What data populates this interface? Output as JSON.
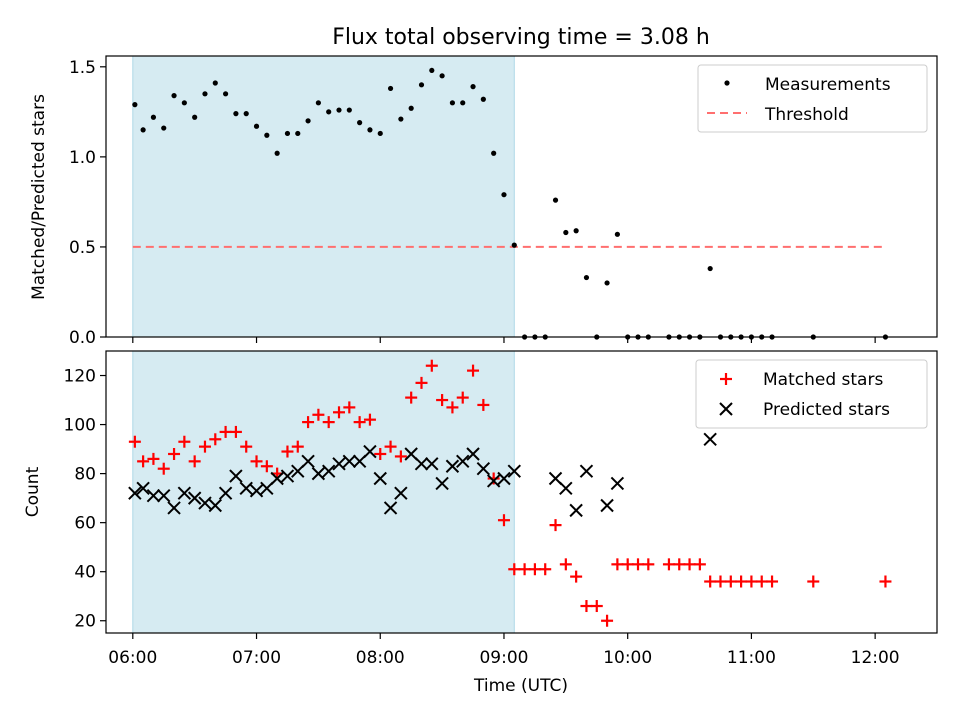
{
  "figure": {
    "title": "Flux total observing time = 3.08 h"
  },
  "colors": {
    "shade": "#add8e6",
    "threshold": "#ff6f6f",
    "matched": "#ff0000",
    "predicted": "#000000",
    "measurements": "#000000"
  },
  "chart_data": [
    {
      "type": "scatter",
      "panel": "top",
      "ylabel": "Matched/Predicted stars",
      "xlabel": "",
      "xlim": [
        "05:47",
        "12:30"
      ],
      "ylim": [
        0,
        1.56
      ],
      "yticks": [
        0.0,
        0.5,
        1.0,
        1.5
      ],
      "ytick_labels": [
        "0.0",
        "0.5",
        "1.0",
        "1.5"
      ],
      "shaded_interval": [
        "06:00",
        "09:05"
      ],
      "legend": {
        "placement": "top-right",
        "entries": [
          "Measurements",
          "Threshold"
        ]
      },
      "threshold": {
        "name": "Threshold",
        "y": 0.5,
        "x_range": [
          "06:00",
          "12:05"
        ],
        "style": "dashed"
      },
      "series": [
        {
          "name": "Measurements",
          "marker": "dot",
          "points": [
            [
              "06:01",
              1.29
            ],
            [
              "06:05",
              1.15
            ],
            [
              "06:10",
              1.22
            ],
            [
              "06:15",
              1.16
            ],
            [
              "06:20",
              1.34
            ],
            [
              "06:25",
              1.3
            ],
            [
              "06:30",
              1.22
            ],
            [
              "06:35",
              1.35
            ],
            [
              "06:40",
              1.41
            ],
            [
              "06:45",
              1.35
            ],
            [
              "06:50",
              1.24
            ],
            [
              "06:55",
              1.24
            ],
            [
              "07:00",
              1.17
            ],
            [
              "07:05",
              1.12
            ],
            [
              "07:10",
              1.02
            ],
            [
              "07:15",
              1.13
            ],
            [
              "07:20",
              1.13
            ],
            [
              "07:25",
              1.2
            ],
            [
              "07:30",
              1.3
            ],
            [
              "07:35",
              1.25
            ],
            [
              "07:40",
              1.26
            ],
            [
              "07:45",
              1.26
            ],
            [
              "07:50",
              1.19
            ],
            [
              "07:55",
              1.15
            ],
            [
              "08:00",
              1.13
            ],
            [
              "08:05",
              1.38
            ],
            [
              "08:10",
              1.21
            ],
            [
              "08:15",
              1.27
            ],
            [
              "08:20",
              1.4
            ],
            [
              "08:25",
              1.48
            ],
            [
              "08:30",
              1.45
            ],
            [
              "08:35",
              1.3
            ],
            [
              "08:40",
              1.3
            ],
            [
              "08:45",
              1.39
            ],
            [
              "08:50",
              1.32
            ],
            [
              "08:55",
              1.02
            ],
            [
              "09:00",
              0.79
            ],
            [
              "09:05",
              0.51
            ],
            [
              "09:10",
              0.0
            ],
            [
              "09:15",
              0.0
            ],
            [
              "09:20",
              0.0
            ],
            [
              "09:25",
              0.76
            ],
            [
              "09:30",
              0.58
            ],
            [
              "09:35",
              0.59
            ],
            [
              "09:40",
              0.33
            ],
            [
              "09:45",
              0.0
            ],
            [
              "09:50",
              0.3
            ],
            [
              "09:55",
              0.57
            ],
            [
              "10:00",
              0.0
            ],
            [
              "10:05",
              0.0
            ],
            [
              "10:10",
              0.0
            ],
            [
              "10:20",
              0.0
            ],
            [
              "10:25",
              0.0
            ],
            [
              "10:30",
              0.0
            ],
            [
              "10:35",
              0.0
            ],
            [
              "10:40",
              0.38
            ],
            [
              "10:45",
              0.0
            ],
            [
              "10:50",
              0.0
            ],
            [
              "10:55",
              0.0
            ],
            [
              "11:00",
              0.0
            ],
            [
              "11:05",
              0.0
            ],
            [
              "11:10",
              0.0
            ],
            [
              "11:30",
              0.0
            ],
            [
              "12:05",
              0.0
            ]
          ]
        }
      ]
    },
    {
      "type": "scatter",
      "panel": "bottom",
      "ylabel": "Count",
      "xlabel": "Time (UTC)",
      "xlim": [
        "05:47",
        "12:30"
      ],
      "ylim": [
        15,
        130
      ],
      "yticks": [
        20,
        40,
        60,
        80,
        100,
        120
      ],
      "ytick_labels": [
        "20",
        "40",
        "60",
        "80",
        "100",
        "120"
      ],
      "xticks": [
        "06:00",
        "07:00",
        "08:00",
        "09:00",
        "10:00",
        "11:00",
        "12:00"
      ],
      "shaded_interval": [
        "06:00",
        "09:05"
      ],
      "legend": {
        "placement": "top-right",
        "entries": [
          "Matched stars",
          "Predicted stars"
        ]
      },
      "series": [
        {
          "name": "Matched stars",
          "marker": "plus",
          "points": [
            [
              "06:01",
              93
            ],
            [
              "06:05",
              85
            ],
            [
              "06:10",
              86
            ],
            [
              "06:15",
              82
            ],
            [
              "06:20",
              88
            ],
            [
              "06:25",
              93
            ],
            [
              "06:30",
              85
            ],
            [
              "06:35",
              91
            ],
            [
              "06:40",
              94
            ],
            [
              "06:45",
              97
            ],
            [
              "06:50",
              97
            ],
            [
              "06:55",
              91
            ],
            [
              "07:00",
              85
            ],
            [
              "07:05",
              83
            ],
            [
              "07:10",
              80
            ],
            [
              "07:15",
              89
            ],
            [
              "07:20",
              91
            ],
            [
              "07:25",
              101
            ],
            [
              "07:30",
              104
            ],
            [
              "07:35",
              101
            ],
            [
              "07:40",
              105
            ],
            [
              "07:45",
              107
            ],
            [
              "07:50",
              101
            ],
            [
              "07:55",
              102
            ],
            [
              "08:00",
              88
            ],
            [
              "08:05",
              91
            ],
            [
              "08:10",
              87
            ],
            [
              "08:15",
              111
            ],
            [
              "08:20",
              117
            ],
            [
              "08:25",
              124
            ],
            [
              "08:30",
              110
            ],
            [
              "08:35",
              107
            ],
            [
              "08:40",
              111
            ],
            [
              "08:45",
              122
            ],
            [
              "08:50",
              108
            ],
            [
              "08:55",
              78
            ],
            [
              "09:00",
              61
            ],
            [
              "09:05",
              41
            ],
            [
              "09:10",
              41
            ],
            [
              "09:15",
              41
            ],
            [
              "09:20",
              41
            ],
            [
              "09:25",
              59
            ],
            [
              "09:30",
              43
            ],
            [
              "09:35",
              38
            ],
            [
              "09:40",
              26
            ],
            [
              "09:45",
              26
            ],
            [
              "09:50",
              20
            ],
            [
              "09:55",
              43
            ],
            [
              "10:00",
              43
            ],
            [
              "10:05",
              43
            ],
            [
              "10:10",
              43
            ],
            [
              "10:20",
              43
            ],
            [
              "10:25",
              43
            ],
            [
              "10:30",
              43
            ],
            [
              "10:35",
              43
            ],
            [
              "10:40",
              36
            ],
            [
              "10:45",
              36
            ],
            [
              "10:50",
              36
            ],
            [
              "10:55",
              36
            ],
            [
              "11:00",
              36
            ],
            [
              "11:05",
              36
            ],
            [
              "11:10",
              36
            ],
            [
              "11:30",
              36
            ],
            [
              "12:05",
              36
            ]
          ]
        },
        {
          "name": "Predicted stars",
          "marker": "x",
          "points": [
            [
              "06:01",
              72
            ],
            [
              "06:05",
              74
            ],
            [
              "06:10",
              71
            ],
            [
              "06:15",
              71
            ],
            [
              "06:20",
              66
            ],
            [
              "06:25",
              72
            ],
            [
              "06:30",
              70
            ],
            [
              "06:35",
              68
            ],
            [
              "06:40",
              67
            ],
            [
              "06:45",
              72
            ],
            [
              "06:50",
              79
            ],
            [
              "06:55",
              74
            ],
            [
              "07:00",
              73
            ],
            [
              "07:05",
              74
            ],
            [
              "07:10",
              78
            ],
            [
              "07:15",
              79
            ],
            [
              "07:20",
              81
            ],
            [
              "07:25",
              85
            ],
            [
              "07:30",
              80
            ],
            [
              "07:35",
              81
            ],
            [
              "07:40",
              84
            ],
            [
              "07:45",
              85
            ],
            [
              "07:50",
              85
            ],
            [
              "07:55",
              89
            ],
            [
              "08:00",
              78
            ],
            [
              "08:05",
              66
            ],
            [
              "08:10",
              72
            ],
            [
              "08:15",
              88
            ],
            [
              "08:20",
              84
            ],
            [
              "08:25",
              84
            ],
            [
              "08:30",
              76
            ],
            [
              "08:35",
              83
            ],
            [
              "08:40",
              85
            ],
            [
              "08:45",
              88
            ],
            [
              "08:50",
              82
            ],
            [
              "08:55",
              77
            ],
            [
              "09:00",
              78
            ],
            [
              "09:05",
              81
            ],
            [
              "09:25",
              78
            ],
            [
              "09:30",
              74
            ],
            [
              "09:35",
              65
            ],
            [
              "09:40",
              81
            ],
            [
              "09:50",
              67
            ],
            [
              "09:55",
              76
            ],
            [
              "10:40",
              94
            ]
          ]
        }
      ]
    }
  ]
}
